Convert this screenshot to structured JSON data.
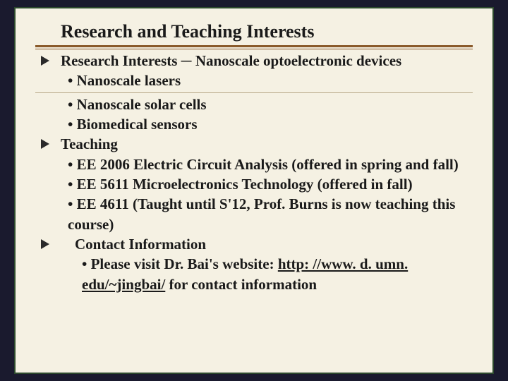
{
  "slide": {
    "title": "Research and Teaching Interests",
    "colors": {
      "background": "#f5f1e3",
      "border": "#2d4a2d",
      "divider": "#8a5a2a",
      "text": "#1a1a1a",
      "sub_divider": "#b8a888"
    },
    "typography": {
      "family": "Times New Roman",
      "title_fontsize": 26,
      "body_fontsize": 21,
      "weight": "bold"
    },
    "sections": [
      {
        "heading": "Research Interests ─ Nanoscale optoelectronic devices",
        "has_divider_after_first": true,
        "items": [
          "Nanoscale lasers",
          "Nanoscale solar cells",
          "Biomedical sensors"
        ]
      },
      {
        "heading": "Teaching",
        "items": [
          "EE 2006 Electric Circuit Analysis (offered in spring and fall)",
          "EE 5611 Microelectronics Technology (offered in fall)",
          "EE 4611 (Taught until S'12, Prof. Burns is now teaching this course)"
        ]
      }
    ],
    "contact": {
      "heading": "Contact Information",
      "text_before": "Please visit Dr. Bai's website: ",
      "link": "http: //www. d. umn. edu/~jingbai/",
      "text_after": " for contact information"
    }
  }
}
